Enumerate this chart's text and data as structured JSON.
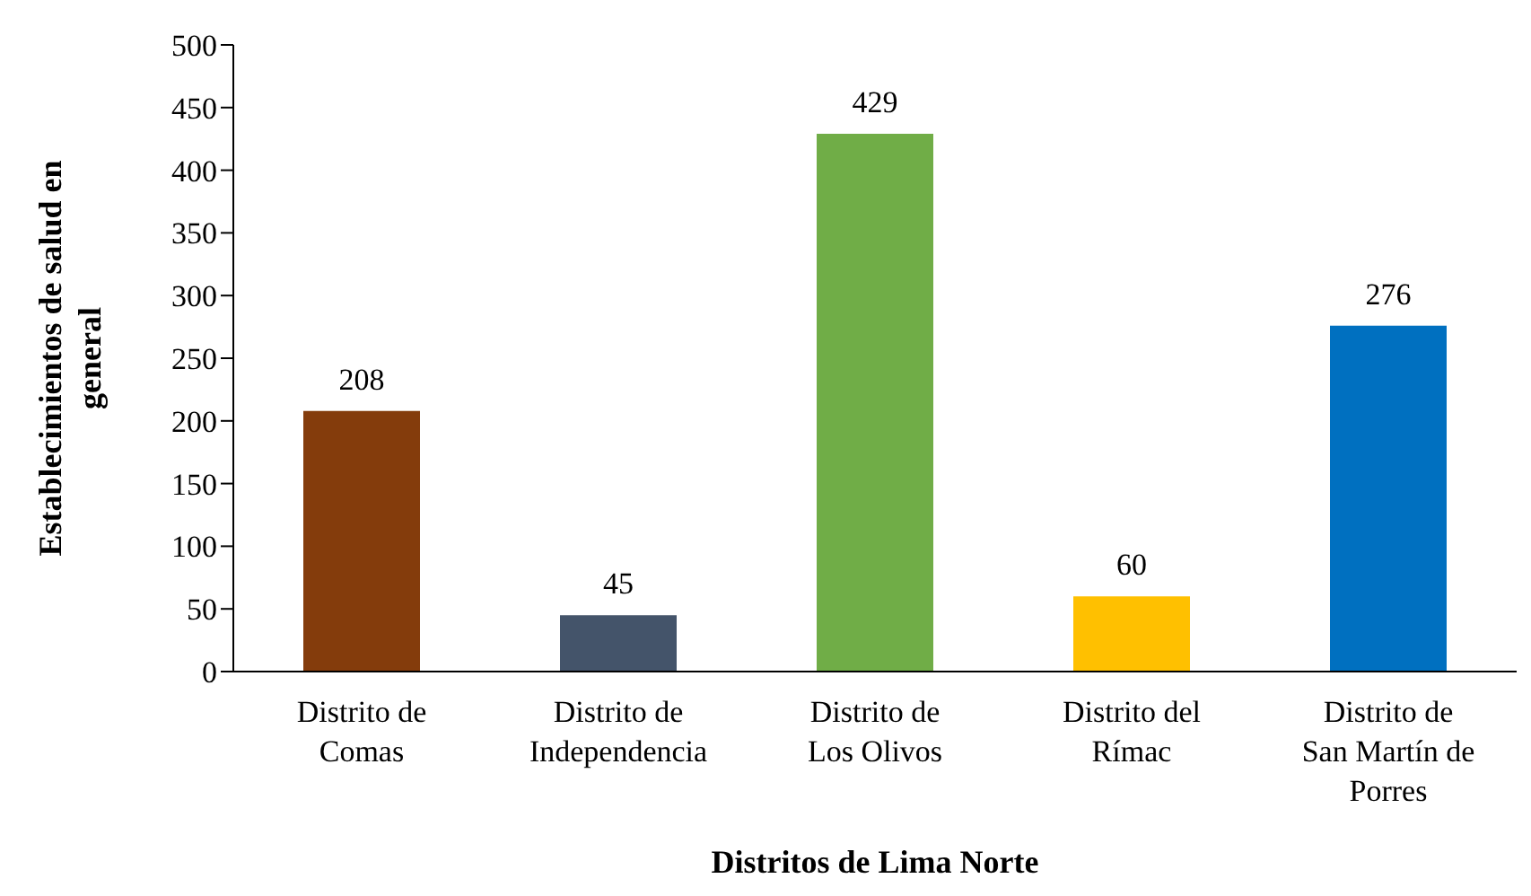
{
  "chart_data": {
    "type": "bar",
    "xlabel": "Distritos de Lima Norte",
    "ylabel": "Establecimientos de salud en general",
    "categories": [
      "Distrito de Comas",
      "Distrito de Independencia",
      "Distrito de Los Olivos",
      "Distrito del Rímac",
      "Distrito de San Martín de Porres"
    ],
    "values": [
      208,
      45,
      429,
      60,
      276
    ],
    "colors": [
      "#843c0c",
      "#44546a",
      "#70ad47",
      "#ffc000",
      "#0070c0"
    ],
    "ylim": [
      0,
      500
    ],
    "yticks": [
      0,
      50,
      100,
      150,
      200,
      250,
      300,
      350,
      400,
      450,
      500
    ],
    "data_labels": true,
    "grid": false,
    "legend": false
  }
}
